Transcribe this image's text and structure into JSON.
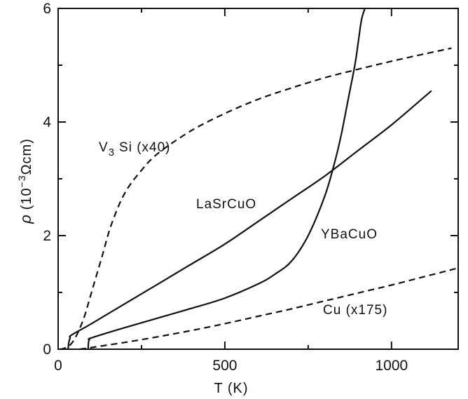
{
  "chart_data": {
    "type": "line",
    "title": "",
    "xlabel": "T (K)",
    "ylabel": "ρ (10⁻³Ωcm)",
    "xlim": [
      0,
      1200
    ],
    "ylim": [
      0,
      6
    ],
    "x_ticks": [
      "0",
      "500",
      "1000"
    ],
    "y_ticks": [
      "0",
      "2",
      "4",
      "6"
    ],
    "grid": false,
    "series": [
      {
        "name": "V3Si (x40)",
        "style": "dashed",
        "x": [
          5,
          20,
          40,
          60,
          80,
          100,
          130,
          160,
          200,
          250,
          300,
          400,
          500,
          600,
          700,
          800,
          900,
          1000,
          1100,
          1180
        ],
        "y": [
          0.0,
          0.02,
          0.1,
          0.3,
          0.6,
          1.0,
          1.6,
          2.2,
          2.75,
          3.15,
          3.45,
          3.85,
          4.15,
          4.4,
          4.6,
          4.78,
          4.93,
          5.07,
          5.2,
          5.3
        ]
      },
      {
        "name": "LaSrCuO",
        "style": "solid",
        "x": [
          30,
          32,
          36,
          40,
          100,
          200,
          300,
          400,
          500,
          600,
          700,
          800,
          900,
          1000,
          1100,
          1120
        ],
        "y": [
          0.0,
          0.12,
          0.2,
          0.25,
          0.45,
          0.8,
          1.15,
          1.5,
          1.85,
          2.25,
          2.65,
          3.05,
          3.5,
          3.95,
          4.45,
          4.55
        ]
      },
      {
        "name": "YBaCuO",
        "style": "solid",
        "x": [
          90,
          91,
          94,
          100,
          200,
          300,
          400,
          500,
          600,
          650,
          700,
          750,
          800,
          830,
          850,
          870,
          890,
          900,
          910,
          920
        ],
        "y": [
          0.0,
          0.12,
          0.17,
          0.2,
          0.38,
          0.55,
          0.72,
          0.9,
          1.15,
          1.32,
          1.55,
          2.0,
          2.7,
          3.3,
          3.8,
          4.4,
          5.0,
          5.4,
          5.8,
          6.0
        ]
      },
      {
        "name": "Cu (x175)",
        "style": "dashed",
        "x": [
          65,
          100,
          200,
          300,
          400,
          500,
          600,
          700,
          800,
          900,
          1000,
          1100,
          1200
        ],
        "y": [
          0.0,
          0.03,
          0.12,
          0.22,
          0.33,
          0.45,
          0.58,
          0.71,
          0.85,
          0.99,
          1.13,
          1.28,
          1.43
        ]
      }
    ],
    "annotations": [
      {
        "series": "V3Si (x40)",
        "text_main": "V",
        "text_sub": "3",
        "text_rest": "Si (x40)"
      },
      {
        "series": "LaSrCuO",
        "text": "LaSrCuO"
      },
      {
        "series": "YBaCuO",
        "text": "YBaCuO"
      },
      {
        "series": "Cu (x175)",
        "text": "Cu (x175)"
      }
    ],
    "ylabel_parts": {
      "rho": "ρ",
      "pre": "(10",
      "exp": "−3",
      "post": "Ωcm)"
    }
  }
}
